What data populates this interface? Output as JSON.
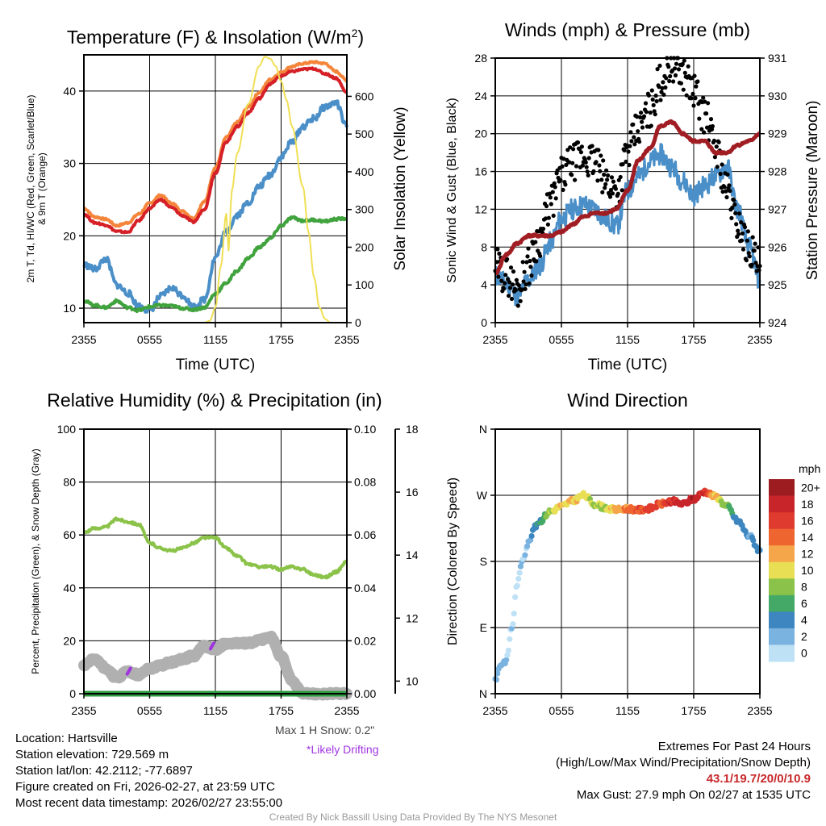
{
  "chart_data": [
    {
      "type": "line",
      "title": "Temperature (F) & Insolation (W/m²)",
      "xlabel": "Time (UTC)",
      "ylabel": "2m T, Td, HI/WC (Red, Green, Scarlet/Blue) & 9m T (Orange)",
      "ylabel_lines": [
        "2m T, Td, HI/WC (Red, Green, Scarlet/Blue)",
        "& 9m T (Orange)"
      ],
      "y2label": "Solar Insolation (Yellow)",
      "x_ticks": [
        "2355",
        "0555",
        "1155",
        "1755",
        "2355"
      ],
      "ylim": [
        8,
        45
      ],
      "y_ticks": [
        10,
        20,
        30,
        40
      ],
      "y2lim": [
        0,
        710
      ],
      "y2_ticks": [
        0,
        100,
        200,
        300,
        400,
        500,
        600
      ],
      "series": [
        {
          "name": "9m T",
          "color": "#f5853a",
          "x": [
            0,
            1,
            2,
            3,
            4,
            5,
            6,
            7,
            8,
            9,
            10,
            11,
            12,
            13,
            14,
            15,
            16,
            17,
            18,
            19,
            20,
            21,
            22,
            23,
            24
          ],
          "values": [
            23.8,
            22.6,
            22.3,
            21.4,
            21.8,
            23.0,
            24.5,
            25.6,
            24.5,
            23.4,
            22.4,
            24.7,
            29.4,
            33.6,
            35.7,
            37.8,
            39.8,
            41.6,
            42.6,
            43.4,
            43.8,
            44.0,
            43.8,
            42.7,
            41.5
          ]
        },
        {
          "name": "2m T",
          "color": "#d62027",
          "x": [
            0,
            1,
            2,
            3,
            4,
            5,
            6,
            7,
            8,
            9,
            10,
            11,
            12,
            13,
            14,
            15,
            16,
            17,
            18,
            19,
            20,
            21,
            22,
            23,
            24
          ],
          "values": [
            23.0,
            21.8,
            21.5,
            20.6,
            20.5,
            22.1,
            23.8,
            25.0,
            23.9,
            22.8,
            21.9,
            23.7,
            28.7,
            33.0,
            35.1,
            37.0,
            39.0,
            41.0,
            42.1,
            42.7,
            43.0,
            43.1,
            42.4,
            41.8,
            39.8
          ]
        },
        {
          "name": "HI/WC",
          "color": "#4a8fc8",
          "x": [
            0,
            1,
            2,
            3,
            4,
            5,
            6,
            7,
            8,
            9,
            10,
            11,
            12,
            13,
            14,
            15,
            16,
            17,
            18,
            19,
            20,
            21,
            22,
            23,
            24
          ],
          "values": [
            16.0,
            15.4,
            16.8,
            13.2,
            12.1,
            10.3,
            9.7,
            11.6,
            12.8,
            11.8,
            10.2,
            11.2,
            17.0,
            20.6,
            22.9,
            24.6,
            26.8,
            28.4,
            30.9,
            33.0,
            35.1,
            36.2,
            37.8,
            38.4,
            35.0
          ]
        },
        {
          "name": "Td",
          "color": "#41a33d",
          "x": [
            0,
            1,
            2,
            3,
            4,
            5,
            6,
            7,
            8,
            9,
            10,
            11,
            12,
            13,
            14,
            15,
            16,
            17,
            18,
            19,
            20,
            21,
            22,
            23,
            24
          ],
          "values": [
            11.0,
            10.4,
            10.1,
            11.0,
            10.1,
            9.7,
            10.2,
            10.4,
            10.3,
            10.0,
            9.8,
            10.1,
            12.0,
            13.5,
            15.2,
            16.9,
            18.4,
            19.6,
            21.4,
            22.5,
            22.1,
            22.2,
            22.0,
            22.3,
            22.4
          ]
        },
        {
          "name": "Solar Insolation",
          "color": "#f0df55",
          "axis": "y2",
          "x": [
            0,
            1,
            2,
            3,
            4,
            5,
            6,
            7,
            8,
            9,
            10,
            11,
            11.5,
            12,
            12.5,
            13,
            13.2,
            13.5,
            14,
            15,
            16,
            16.5,
            17,
            17.5,
            18,
            18.5,
            19,
            20,
            20.5,
            21,
            21.5,
            22,
            22.5,
            24
          ],
          "values": [
            0,
            0,
            0,
            0,
            0,
            0,
            0,
            0,
            0,
            0,
            0,
            0,
            5,
            40,
            150,
            290,
            190,
            350,
            450,
            580,
            680,
            705,
            700,
            680,
            640,
            590,
            520,
            360,
            240,
            120,
            40,
            10,
            0,
            0
          ]
        }
      ]
    },
    {
      "type": "line",
      "title": "Winds (mph) & Pressure (mb)",
      "xlabel": "Time (UTC)",
      "ylabel": "Sonic Wind & Gust (Blue, Black)",
      "y2label": "Station Pressure (Maroon)",
      "x_ticks": [
        "2355",
        "0555",
        "1155",
        "1755",
        "2355"
      ],
      "ylim": [
        0,
        28
      ],
      "y_ticks": [
        0,
        4,
        8,
        12,
        16,
        20,
        24,
        28
      ],
      "y2lim": [
        924,
        931
      ],
      "y2_ticks": [
        924,
        925,
        926,
        927,
        928,
        929,
        930,
        931
      ],
      "series": [
        {
          "name": "Sonic Wind",
          "color": "#4a8fc8",
          "x": [
            0,
            1,
            2,
            3,
            4,
            5,
            6,
            7,
            8,
            9,
            10,
            11,
            12,
            13,
            14,
            15,
            16,
            17,
            18,
            19,
            20,
            21,
            22,
            23,
            24
          ],
          "values": [
            5.0,
            4.2,
            2.8,
            4.5,
            6.0,
            8.5,
            11.0,
            12.0,
            12.5,
            12.0,
            11.0,
            10.2,
            14.0,
            15.5,
            17.0,
            17.8,
            16.5,
            15.0,
            13.5,
            14.5,
            15.5,
            16.5,
            12.0,
            8.0,
            4.5
          ]
        },
        {
          "name": "Gust",
          "color": "#000000",
          "x": [
            0,
            1,
            2,
            3,
            4,
            5,
            6,
            7,
            8,
            9,
            10,
            11,
            12,
            13,
            14,
            15,
            16,
            17,
            18,
            19,
            20,
            21,
            22,
            23,
            24
          ],
          "values": [
            6.0,
            5.0,
            3.5,
            6.0,
            9.0,
            12.5,
            15.5,
            17.0,
            17.5,
            17.0,
            15.0,
            14.0,
            18.0,
            20.5,
            22.5,
            25.5,
            27.5,
            26.5,
            24.5,
            22.0,
            18.5,
            14.0,
            10.5,
            8.0,
            6.0
          ]
        },
        {
          "name": "Station Pressure",
          "color": "#a01e23",
          "axis": "y2",
          "x": [
            0,
            1,
            2,
            3,
            4,
            5,
            6,
            7,
            8,
            9,
            10,
            11,
            12,
            13,
            14,
            15,
            16,
            17,
            18,
            19,
            20,
            21,
            22,
            23,
            24
          ],
          "values": [
            925.3,
            925.8,
            926.1,
            926.3,
            926.3,
            926.3,
            926.4,
            926.6,
            926.8,
            926.9,
            926.9,
            927.0,
            927.5,
            928.3,
            928.6,
            929.2,
            929.3,
            929.0,
            928.8,
            928.8,
            928.5,
            928.5,
            928.7,
            928.8,
            929.0
          ]
        }
      ]
    },
    {
      "type": "line",
      "title": "Relative Humidity (%) & Precipitation (in)",
      "ylabel": "Percent, Precipitation (Green), & Snow Depth (Gray)",
      "x_ticks": [
        "2355",
        "0555",
        "1155",
        "1755",
        "2355"
      ],
      "ylim": [
        0,
        100
      ],
      "y_ticks": [
        0,
        20,
        40,
        60,
        80,
        100
      ],
      "y2lim": [
        0,
        0.1
      ],
      "y2_ticks": [
        "0.00",
        "0.02",
        "0.04",
        "0.06",
        "0.08",
        "0.10"
      ],
      "y3lim": [
        9.6,
        18.0
      ],
      "y3_ticks": [
        10,
        12,
        14,
        16,
        18
      ],
      "series": [
        {
          "name": "Relative Humidity",
          "color": "#8bc34a",
          "x": [
            0,
            1,
            2,
            3,
            4,
            5,
            6,
            7,
            8,
            9,
            10,
            11,
            12,
            13,
            14,
            15,
            16,
            17,
            18,
            19,
            20,
            21,
            22,
            23,
            24
          ],
          "values": [
            61,
            62.5,
            63,
            66,
            65,
            64,
            57,
            55,
            54,
            55,
            57,
            59,
            59,
            55,
            52,
            49,
            48,
            48,
            47,
            48,
            47,
            45,
            44,
            46,
            50
          ]
        },
        {
          "name": "Snow Depth",
          "color": "#b0b0b0",
          "axis": "y3",
          "x": [
            0,
            1,
            2,
            3,
            4,
            5,
            6,
            7,
            8,
            9,
            10,
            11,
            12,
            13,
            14,
            15,
            16,
            17,
            18,
            19,
            20,
            21,
            22,
            23,
            24
          ],
          "values": [
            10.5,
            10.7,
            10.4,
            10.1,
            10.3,
            10.2,
            10.4,
            10.5,
            10.6,
            10.7,
            10.8,
            11.1,
            11.0,
            11.2,
            11.2,
            11.2,
            11.3,
            11.4,
            10.8,
            10.0,
            9.6,
            9.6,
            9.6,
            9.6,
            9.6
          ]
        },
        {
          "name": "Precipitation",
          "color": "#2e9a3f",
          "axis": "y2",
          "x": [
            0,
            24
          ],
          "values": [
            0,
            0
          ]
        }
      ],
      "drifting_marks": [
        {
          "x": 4.1,
          "snow": 10.3
        },
        {
          "x": 11.7,
          "snow": 11.1
        }
      ]
    },
    {
      "type": "scatter",
      "title": "Wind Direction",
      "ylabel": "Direction (Colored By Speed)",
      "x_ticks": [
        "2355",
        "0555",
        "1155",
        "1755",
        "2355"
      ],
      "ylim": [
        0,
        360
      ],
      "y_ticks": [
        "N",
        "E",
        "S",
        "W",
        "N"
      ],
      "x": [
        0,
        0.5,
        1,
        1.5,
        2,
        2.5,
        3,
        3.5,
        4,
        5,
        6,
        7,
        8,
        9,
        10,
        11,
        12,
        13,
        14,
        15,
        16,
        17,
        18,
        19,
        20,
        21,
        22,
        23,
        24
      ],
      "values": [
        20,
        40,
        45,
        90,
        150,
        185,
        205,
        225,
        235,
        248,
        255,
        262,
        270,
        258,
        253,
        250,
        252,
        250,
        252,
        258,
        262,
        258,
        265,
        275,
        268,
        255,
        235,
        215,
        195
      ],
      "speeds": [
        3,
        3,
        2,
        2,
        1,
        2,
        3,
        5,
        6,
        10,
        12,
        12,
        11,
        10,
        10,
        13,
        14,
        16,
        17,
        16,
        18,
        19,
        20,
        18,
        12,
        8,
        5,
        4,
        5
      ],
      "colorbar": {
        "label": "mph",
        "levels": [
          "20+",
          "18",
          "16",
          "14",
          "12",
          "10",
          "8",
          "6",
          "4",
          "2",
          "0"
        ]
      }
    }
  ],
  "annotations": {
    "snow_max": "Max 1 H Snow: 0.2\"",
    "drifting": "*Likely Drifting",
    "location": "Location: Hartsville",
    "elevation": "Station elevation: 729.569 m",
    "latlon": "Station lat/lon: 42.2112; -77.6897",
    "created": "Figure created on Fri, 2026-02-27, at 23:59 UTC",
    "recent": "Most recent data timestamp: 2026/02/27 23:55:00",
    "extremes_title": "Extremes For Past 24 Hours",
    "extremes_desc": "(High/Low/Max Wind/Precipitation/Snow Depth)",
    "extremes_values": "43.1/19.7/20/0/10.9",
    "max_gust": "Max Gust: 27.9 mph On 02/27 at 1535 UTC",
    "footer": "Created By Nick Bassill Using Data Provided By The NYS Mesonet"
  },
  "colors": {
    "colorbar": [
      "#9c1c20",
      "#c8252a",
      "#df3b2f",
      "#ef6530",
      "#f6a64a",
      "#e8df55",
      "#8bc34a",
      "#44a866",
      "#3d86c0",
      "#7ab3e0",
      "#bfe1f5"
    ]
  }
}
